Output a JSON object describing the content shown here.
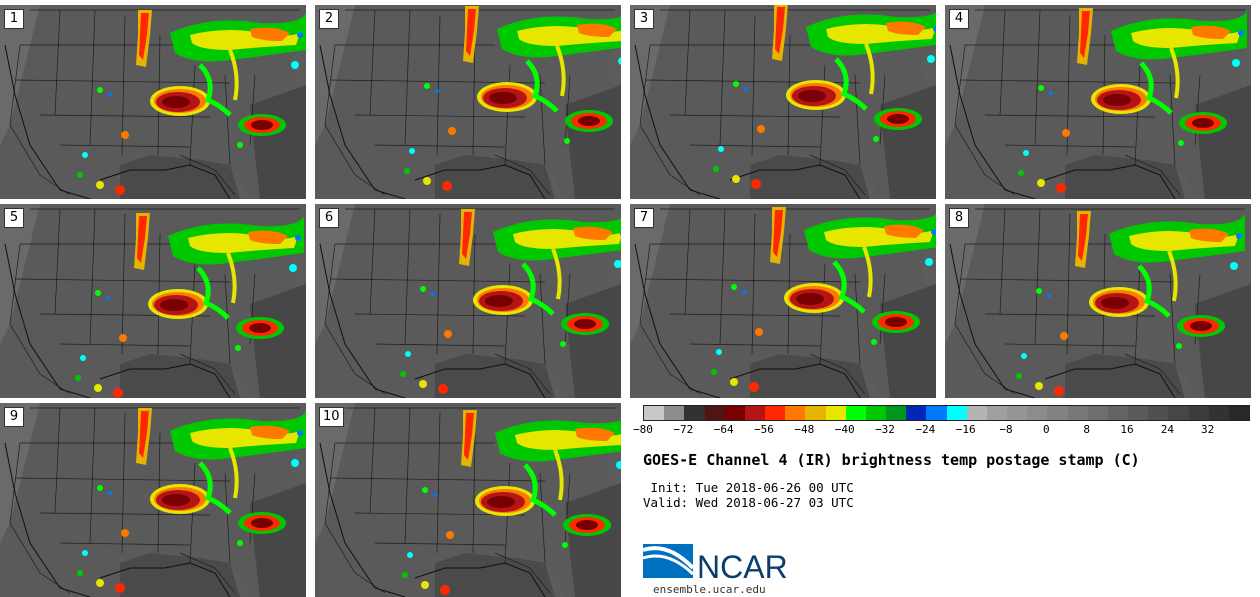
{
  "panels": [
    {
      "label": "1"
    },
    {
      "label": "2"
    },
    {
      "label": "3"
    },
    {
      "label": "4"
    },
    {
      "label": "5"
    },
    {
      "label": "6"
    },
    {
      "label": "7"
    },
    {
      "label": "8"
    },
    {
      "label": "9"
    },
    {
      "label": "10"
    }
  ],
  "colorbar": {
    "ticks": [
      "−80",
      "−72",
      "−64",
      "−56",
      "−48",
      "−40",
      "−32",
      "−24",
      "−16",
      "−8",
      "0",
      "8",
      "16",
      "24",
      "32"
    ],
    "colors": [
      "#c8c8c8",
      "#8c8c8c",
      "#323232",
      "#501414",
      "#780000",
      "#b41414",
      "#ff2800",
      "#ff7800",
      "#e6b400",
      "#e6e600",
      "#00ff00",
      "#00c800",
      "#00961e",
      "#0028b4",
      "#0078ff",
      "#00ffff",
      "#b4b4b4",
      "#a0a0a0",
      "#969696",
      "#8c8c8c",
      "#828282",
      "#787878",
      "#6e6e6e",
      "#646464",
      "#5a5a5a",
      "#505050",
      "#464646",
      "#3c3c3c",
      "#323232",
      "#282828"
    ]
  },
  "title": "GOES-E Channel 4 (IR) brightness temp postage stamp (C)",
  "init": " Init: Tue 2018-06-26 00 UTC",
  "valid": "Valid: Wed 2018-06-27 03 UTC",
  "logo_text": "NCAR",
  "website": "ensemble.ucar.edu"
}
